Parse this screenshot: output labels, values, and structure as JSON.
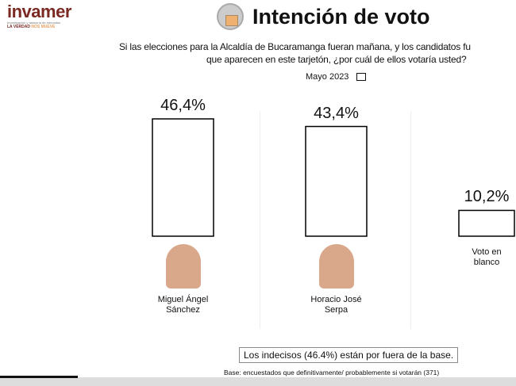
{
  "logo": {
    "name": "invamer",
    "subtitle": "Investigación y asesoría de mercados",
    "tagline_a": "LA VERDAD",
    "tagline_b": "NOS MUEVE"
  },
  "title": "Intención de voto",
  "question_line1": "Si las elecciones para la Alcaldía de Bucaramanga fueran mañana, y los candidatos fu",
  "question_line2": "que aparecen en este tarjetón, ¿por cuál de ellos votaría usted?",
  "note": "Los indecisos (46.4%) están por fuera de la base.",
  "base": "Base: encuestados que definitivamente/ probablemente si votarán (371)",
  "video_progress_percent": 15,
  "chart_data": {
    "type": "bar",
    "legend": [
      "Mayo 2023"
    ],
    "legend_placement": "top",
    "categories": [
      "Miguel Ángel Sánchez",
      "Horacio José Serpa",
      "Voto en blanco"
    ],
    "category_lines": [
      [
        "Miguel Ángel",
        "Sánchez"
      ],
      [
        "Horacio José",
        "Serpa"
      ],
      [
        "Voto en",
        "blanco"
      ]
    ],
    "values": [
      46.4,
      43.4,
      10.2
    ],
    "labels": [
      "46,4%",
      "43,4%",
      "10,2%"
    ],
    "bar_fill": "#ffffff",
    "bar_stroke": "#000000",
    "grid": false
  }
}
